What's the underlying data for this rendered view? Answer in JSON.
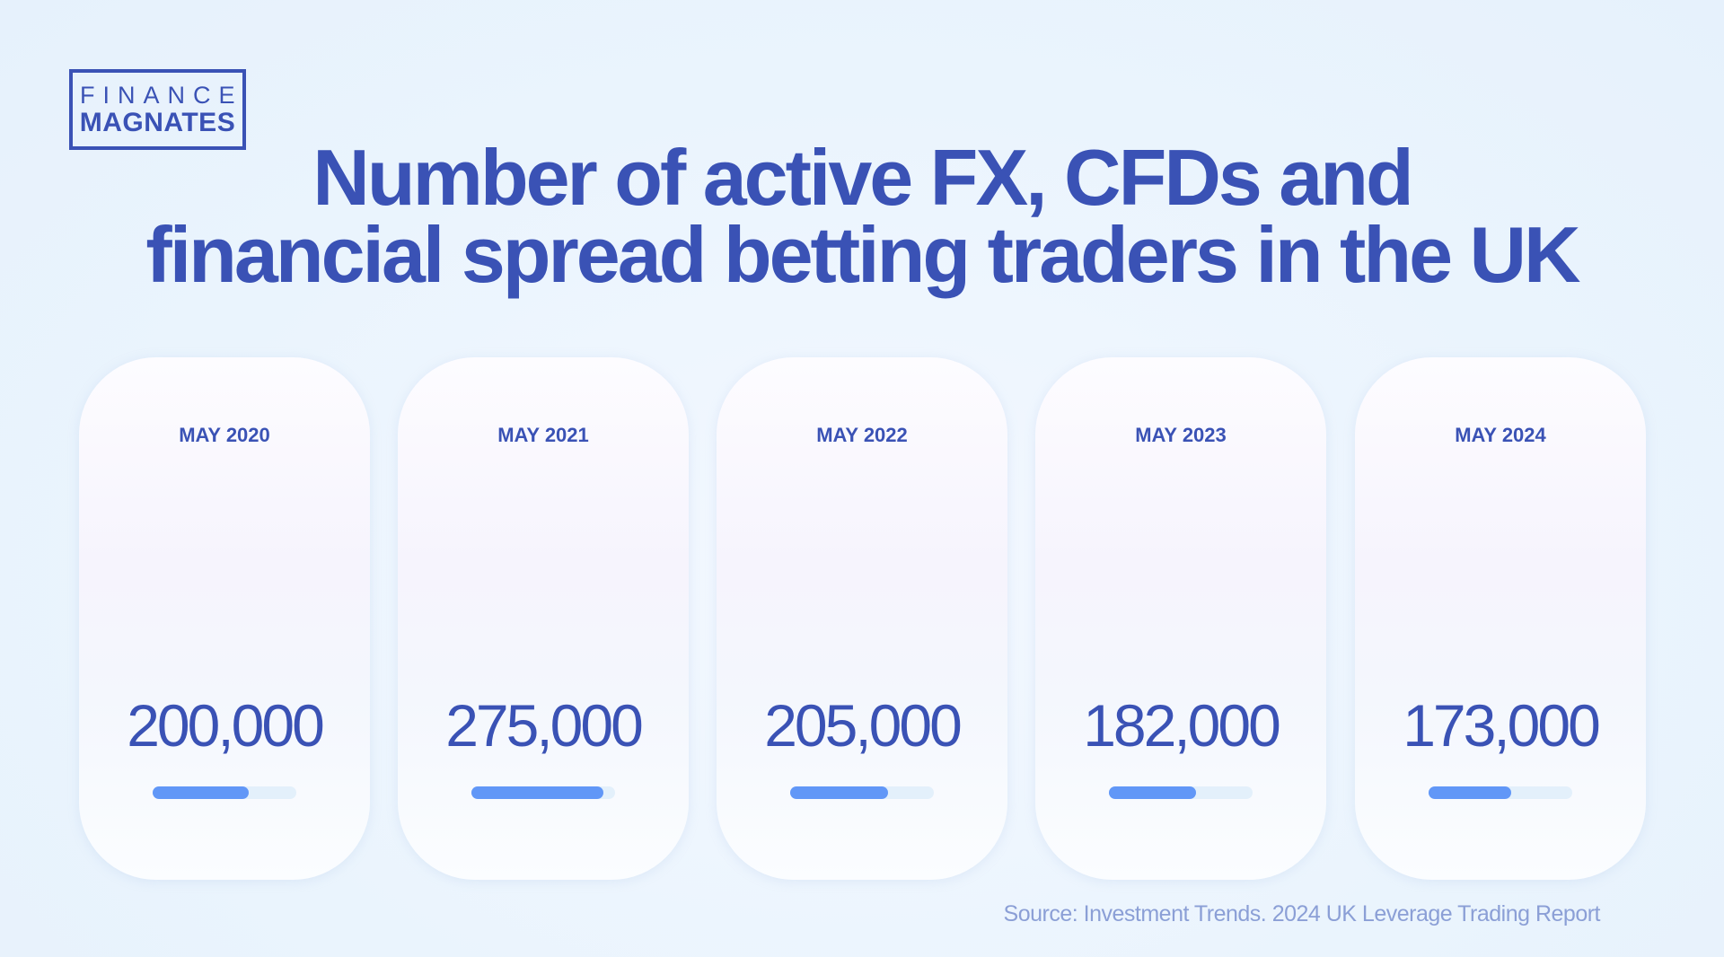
{
  "logo": {
    "line1": "FINANCE",
    "line2": "MAGNATES"
  },
  "title": {
    "line1": "Number of active FX, CFDs and",
    "line2": "financial spread betting traders in the UK"
  },
  "colors": {
    "primary": "#3a52b5",
    "bar_fill": "#6197f7",
    "bar_track": "#e3f0fb",
    "source": "#8b9fd6"
  },
  "chart_data": {
    "type": "bar",
    "categories": [
      "MAY 2020",
      "MAY 2021",
      "MAY 2022",
      "MAY 2023",
      "MAY 2024"
    ],
    "values": [
      200000,
      275000,
      205000,
      182000,
      173000
    ],
    "labels": [
      "200,000",
      "275,000",
      "205,000",
      "182,000",
      "173,000"
    ],
    "ylim": [
      0,
      300000
    ]
  },
  "source": "Source: Investment Trends. 2024 UK Leverage Trading Report"
}
